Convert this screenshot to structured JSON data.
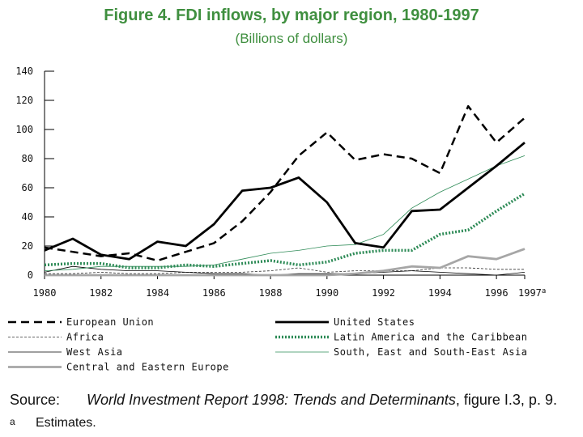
{
  "chart_data": {
    "type": "line",
    "title": "Figure 4.  FDI inflows, by major region, 1980-1997",
    "subtitle": "(Billions of dollars)",
    "x": [
      1980,
      1981,
      1982,
      1983,
      1984,
      1985,
      1986,
      1987,
      1988,
      1989,
      1990,
      1991,
      1992,
      1993,
      1994,
      1995,
      1996,
      1997
    ],
    "x_tick_labels": [
      "1980",
      "1982",
      "1984",
      "1986",
      "1988",
      "1990",
      "1992",
      "1994",
      "1996",
      "1997"
    ],
    "x_last_footnote": "a",
    "y_ticks": [
      0,
      20,
      40,
      60,
      80,
      100,
      120,
      140
    ],
    "ylim": [
      0,
      140
    ],
    "xlim": [
      1980,
      1997
    ],
    "series": [
      {
        "name": "European Union",
        "color": "#000000",
        "style": "dashed-thick",
        "values": [
          19,
          16,
          13,
          15,
          10,
          16,
          22,
          37,
          57,
          82,
          98,
          79,
          83,
          80,
          70,
          116,
          91,
          108
        ]
      },
      {
        "name": "United States",
        "color": "#000000",
        "style": "solid-thick",
        "values": [
          17,
          25,
          14,
          11,
          23,
          20,
          35,
          58,
          60,
          67,
          50,
          22,
          19,
          44,
          45,
          60,
          75,
          91
        ]
      },
      {
        "name": "Africa",
        "color": "#333333",
        "style": "dashed-thin",
        "values": [
          1,
          1,
          2,
          1,
          1,
          2,
          2,
          2,
          3,
          5,
          2,
          3,
          3,
          3,
          5,
          5,
          4,
          4
        ]
      },
      {
        "name": "Latin America and the Caribbean",
        "color": "#2e8b57",
        "style": "dotted-thick",
        "values": [
          7,
          8,
          8,
          5,
          5,
          7,
          6,
          8,
          10,
          7,
          9,
          15,
          17,
          17,
          28,
          31,
          44,
          56
        ]
      },
      {
        "name": "West Asia",
        "color": "#000000",
        "style": "solid-thin",
        "values": [
          2,
          6,
          4,
          3,
          3,
          2,
          1,
          1,
          0,
          1,
          1,
          1,
          2,
          3,
          2,
          1,
          0,
          2
        ]
      },
      {
        "name": "South, East and South-East Asia",
        "color": "#2e8b57",
        "style": "solid-thin",
        "values": [
          3,
          4,
          6,
          6,
          6,
          6,
          7,
          11,
          15,
          17,
          20,
          21,
          28,
          46,
          57,
          66,
          75,
          82
        ]
      },
      {
        "name": "Central and Eastern Europe",
        "color": "#a6a6a6",
        "style": "solid-thick",
        "values": [
          0,
          0,
          0,
          0,
          0,
          0,
          0,
          0,
          0,
          0,
          0,
          1,
          3,
          6,
          5,
          13,
          11,
          18
        ]
      }
    ]
  },
  "footer": {
    "source_label": "Source:",
    "source_title": "World Investment Report 1998:  Trends and Determinants",
    "source_rest": ", figure I.3, p. 9.",
    "note_mark": "a",
    "note_text": "Estimates."
  }
}
